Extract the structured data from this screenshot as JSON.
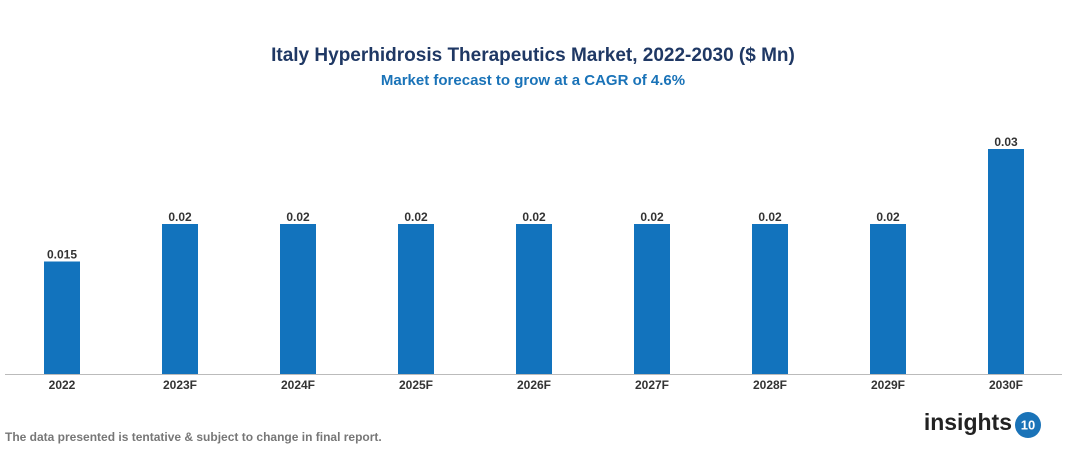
{
  "chart_data": {
    "type": "bar",
    "title": "Italy Hyperhidrosis Therapeutics Market, 2022-2030 ($ Mn)",
    "subtitle": "Market forecast to grow at a CAGR of 4.6%",
    "categories": [
      "2022",
      "2023F",
      "2024F",
      "2025F",
      "2026F",
      "2027F",
      "2028F",
      "2029F",
      "2030F"
    ],
    "values": [
      0.015,
      0.02,
      0.02,
      0.02,
      0.02,
      0.02,
      0.02,
      0.02,
      0.03
    ],
    "color": "#1273bd",
    "footnote": "The data presented is tentative & subject to change in final report.",
    "logo_text": "insights",
    "logo_badge": "10"
  }
}
